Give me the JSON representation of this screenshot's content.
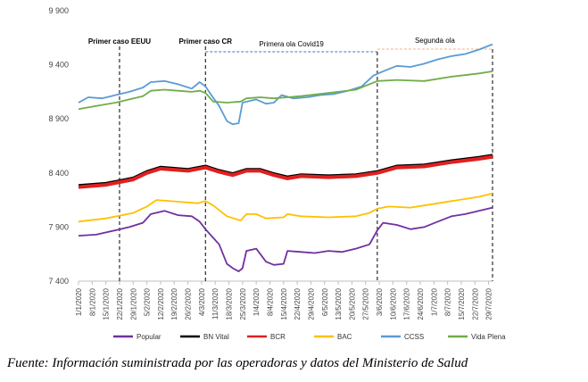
{
  "chart_data": {
    "type": "line",
    "title": "",
    "xlabel": "",
    "ylabel": "",
    "ylim": [
      7400,
      9900
    ],
    "yticks": [
      7400,
      7900,
      8400,
      8900,
      9400,
      9900
    ],
    "ytick_labels": [
      "7 400",
      "7 900",
      "8 400",
      "8 900",
      "9 400",
      "9 900"
    ],
    "x_start": "2020-01-01",
    "x_end": "2020-07-31",
    "x_tick_labels": [
      "1/1/2020",
      "8/1/2020",
      "15/1/2020",
      "22/1/2020",
      "29/1/2020",
      "5/2/2020",
      "12/2/2020",
      "19/2/2020",
      "26/2/2020",
      "4/3/2020",
      "11/3/2020",
      "18/3/2020",
      "25/3/2020",
      "1/4/2020",
      "8/4/2020",
      "15/4/2020",
      "22/4/2020",
      "29/4/2020",
      "6/5/2020",
      "13/5/2020",
      "20/5/2020",
      "27/5/2020",
      "3/6/2020",
      "10/6/2020",
      "17/6/2020",
      "24/6/2020",
      "1/7/2020",
      "8/7/2020",
      "15/7/2020",
      "22/7/2020",
      "29/7/2020"
    ],
    "grid": false,
    "legend_position": "bottom",
    "annotations": {
      "first_case_usa": {
        "label": "Primer caso EEUU",
        "x": "2020-01-22"
      },
      "first_case_cr": {
        "label": "Primer caso CR",
        "x": "2020-03-06"
      },
      "first_wave": {
        "label": "Primera ola  Covid19",
        "x_from": "2020-03-06",
        "x_to": "2020-06-02"
      },
      "second_wave": {
        "label": "Segunda  ola",
        "x_from": "2020-06-02",
        "x_to": "2020-07-31"
      }
    },
    "series": [
      {
        "name": "Popular",
        "color": "#7030a0",
        "points": [
          [
            "2020-01-01",
            7820
          ],
          [
            "2020-01-10",
            7830
          ],
          [
            "2020-01-20",
            7870
          ],
          [
            "2020-01-27",
            7900
          ],
          [
            "2020-02-03",
            7940
          ],
          [
            "2020-02-07",
            8020
          ],
          [
            "2020-02-14",
            8050
          ],
          [
            "2020-02-21",
            8010
          ],
          [
            "2020-02-28",
            8000
          ],
          [
            "2020-03-03",
            7950
          ],
          [
            "2020-03-06",
            7880
          ],
          [
            "2020-03-10",
            7800
          ],
          [
            "2020-03-13",
            7740
          ],
          [
            "2020-03-17",
            7560
          ],
          [
            "2020-03-20",
            7520
          ],
          [
            "2020-03-23",
            7490
          ],
          [
            "2020-03-25",
            7520
          ],
          [
            "2020-03-27",
            7680
          ],
          [
            "2020-04-01",
            7700
          ],
          [
            "2020-04-06",
            7580
          ],
          [
            "2020-04-10",
            7550
          ],
          [
            "2020-04-15",
            7560
          ],
          [
            "2020-04-17",
            7680
          ],
          [
            "2020-04-24",
            7670
          ],
          [
            "2020-05-01",
            7660
          ],
          [
            "2020-05-08",
            7680
          ],
          [
            "2020-05-15",
            7670
          ],
          [
            "2020-05-22",
            7700
          ],
          [
            "2020-05-29",
            7740
          ],
          [
            "2020-06-02",
            7870
          ],
          [
            "2020-06-05",
            7940
          ],
          [
            "2020-06-12",
            7920
          ],
          [
            "2020-06-19",
            7880
          ],
          [
            "2020-06-26",
            7900
          ],
          [
            "2020-07-03",
            7950
          ],
          [
            "2020-07-10",
            8000
          ],
          [
            "2020-07-17",
            8020
          ],
          [
            "2020-07-24",
            8050
          ],
          [
            "2020-07-31",
            8080
          ]
        ]
      },
      {
        "name": "BN Vital",
        "color": "#000000",
        "points": [
          [
            "2020-01-01",
            8290
          ],
          [
            "2020-01-15",
            8310
          ],
          [
            "2020-01-29",
            8360
          ],
          [
            "2020-02-05",
            8420
          ],
          [
            "2020-02-12",
            8460
          ],
          [
            "2020-02-26",
            8440
          ],
          [
            "2020-03-06",
            8470
          ],
          [
            "2020-03-13",
            8430
          ],
          [
            "2020-03-20",
            8400
          ],
          [
            "2020-03-27",
            8440
          ],
          [
            "2020-04-03",
            8440
          ],
          [
            "2020-04-10",
            8400
          ],
          [
            "2020-04-17",
            8370
          ],
          [
            "2020-04-24",
            8390
          ],
          [
            "2020-05-08",
            8380
          ],
          [
            "2020-05-22",
            8390
          ],
          [
            "2020-06-02",
            8420
          ],
          [
            "2020-06-12",
            8470
          ],
          [
            "2020-06-26",
            8480
          ],
          [
            "2020-07-10",
            8520
          ],
          [
            "2020-07-24",
            8550
          ],
          [
            "2020-07-31",
            8570
          ]
        ]
      },
      {
        "name": "BCR",
        "color": "#e02020",
        "points": [
          [
            "2020-01-01",
            8270
          ],
          [
            "2020-01-15",
            8290
          ],
          [
            "2020-01-29",
            8340
          ],
          [
            "2020-02-05",
            8400
          ],
          [
            "2020-02-12",
            8440
          ],
          [
            "2020-02-26",
            8420
          ],
          [
            "2020-03-06",
            8450
          ],
          [
            "2020-03-13",
            8410
          ],
          [
            "2020-03-20",
            8380
          ],
          [
            "2020-03-27",
            8420
          ],
          [
            "2020-04-03",
            8420
          ],
          [
            "2020-04-10",
            8380
          ],
          [
            "2020-04-17",
            8350
          ],
          [
            "2020-04-24",
            8370
          ],
          [
            "2020-05-08",
            8360
          ],
          [
            "2020-05-22",
            8370
          ],
          [
            "2020-06-02",
            8400
          ],
          [
            "2020-06-12",
            8450
          ],
          [
            "2020-06-26",
            8460
          ],
          [
            "2020-07-10",
            8500
          ],
          [
            "2020-07-24",
            8530
          ],
          [
            "2020-07-31",
            8550
          ]
        ]
      },
      {
        "name": "BAC",
        "color": "#ffc000",
        "points": [
          [
            "2020-01-01",
            7950
          ],
          [
            "2020-01-15",
            7980
          ],
          [
            "2020-01-29",
            8030
          ],
          [
            "2020-02-05",
            8090
          ],
          [
            "2020-02-10",
            8150
          ],
          [
            "2020-02-24",
            8130
          ],
          [
            "2020-03-02",
            8120
          ],
          [
            "2020-03-06",
            8140
          ],
          [
            "2020-03-10",
            8100
          ],
          [
            "2020-03-17",
            8000
          ],
          [
            "2020-03-24",
            7960
          ],
          [
            "2020-03-27",
            8020
          ],
          [
            "2020-04-01",
            8020
          ],
          [
            "2020-04-06",
            7980
          ],
          [
            "2020-04-15",
            7990
          ],
          [
            "2020-04-17",
            8020
          ],
          [
            "2020-04-24",
            8000
          ],
          [
            "2020-05-08",
            7990
          ],
          [
            "2020-05-22",
            8000
          ],
          [
            "2020-05-29",
            8030
          ],
          [
            "2020-06-02",
            8070
          ],
          [
            "2020-06-08",
            8090
          ],
          [
            "2020-06-19",
            8080
          ],
          [
            "2020-06-26",
            8100
          ],
          [
            "2020-07-10",
            8140
          ],
          [
            "2020-07-24",
            8180
          ],
          [
            "2020-07-31",
            8210
          ]
        ]
      },
      {
        "name": "CCSS",
        "color": "#5b9bd5",
        "points": [
          [
            "2020-01-01",
            9050
          ],
          [
            "2020-01-06",
            9100
          ],
          [
            "2020-01-13",
            9090
          ],
          [
            "2020-01-20",
            9120
          ],
          [
            "2020-01-27",
            9150
          ],
          [
            "2020-02-03",
            9190
          ],
          [
            "2020-02-07",
            9240
          ],
          [
            "2020-02-14",
            9250
          ],
          [
            "2020-02-21",
            9220
          ],
          [
            "2020-02-28",
            9180
          ],
          [
            "2020-03-03",
            9240
          ],
          [
            "2020-03-06",
            9200
          ],
          [
            "2020-03-09",
            9120
          ],
          [
            "2020-03-13",
            9020
          ],
          [
            "2020-03-17",
            8880
          ],
          [
            "2020-03-20",
            8850
          ],
          [
            "2020-03-23",
            8860
          ],
          [
            "2020-03-25",
            9050
          ],
          [
            "2020-04-01",
            9080
          ],
          [
            "2020-04-06",
            9040
          ],
          [
            "2020-04-10",
            9050
          ],
          [
            "2020-04-14",
            9120
          ],
          [
            "2020-04-20",
            9090
          ],
          [
            "2020-04-27",
            9100
          ],
          [
            "2020-05-04",
            9120
          ],
          [
            "2020-05-11",
            9130
          ],
          [
            "2020-05-18",
            9160
          ],
          [
            "2020-05-25",
            9200
          ],
          [
            "2020-05-31",
            9300
          ],
          [
            "2020-06-05",
            9340
          ],
          [
            "2020-06-12",
            9390
          ],
          [
            "2020-06-19",
            9380
          ],
          [
            "2020-06-26",
            9410
          ],
          [
            "2020-07-03",
            9450
          ],
          [
            "2020-07-10",
            9480
          ],
          [
            "2020-07-17",
            9500
          ],
          [
            "2020-07-24",
            9540
          ],
          [
            "2020-07-31",
            9590
          ]
        ]
      },
      {
        "name": "Vida Plena",
        "color": "#70ad47",
        "points": [
          [
            "2020-01-01",
            8990
          ],
          [
            "2020-01-10",
            9020
          ],
          [
            "2020-01-20",
            9050
          ],
          [
            "2020-01-27",
            9080
          ],
          [
            "2020-02-03",
            9110
          ],
          [
            "2020-02-07",
            9160
          ],
          [
            "2020-02-14",
            9170
          ],
          [
            "2020-02-21",
            9160
          ],
          [
            "2020-02-28",
            9150
          ],
          [
            "2020-03-03",
            9160
          ],
          [
            "2020-03-06",
            9140
          ],
          [
            "2020-03-10",
            9060
          ],
          [
            "2020-03-17",
            9050
          ],
          [
            "2020-03-24",
            9060
          ],
          [
            "2020-03-27",
            9090
          ],
          [
            "2020-04-03",
            9100
          ],
          [
            "2020-04-10",
            9090
          ],
          [
            "2020-04-17",
            9100
          ],
          [
            "2020-04-24",
            9110
          ],
          [
            "2020-05-08",
            9140
          ],
          [
            "2020-05-22",
            9170
          ],
          [
            "2020-06-02",
            9250
          ],
          [
            "2020-06-12",
            9260
          ],
          [
            "2020-06-26",
            9250
          ],
          [
            "2020-07-10",
            9290
          ],
          [
            "2020-07-24",
            9320
          ],
          [
            "2020-07-31",
            9340
          ]
        ]
      }
    ]
  },
  "source": "Fuente:  Información suministrada por las operadoras y datos del Ministerio de Salud"
}
